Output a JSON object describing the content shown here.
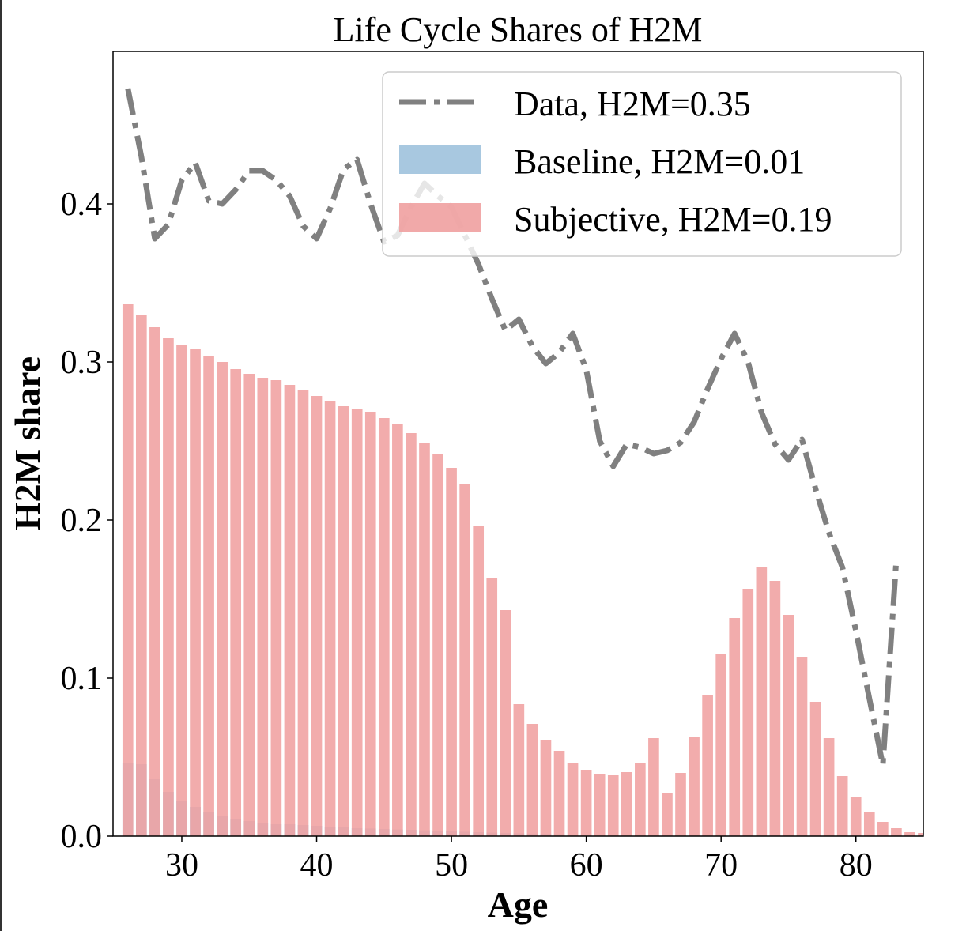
{
  "chart_data": {
    "type": "bar",
    "title": "Life Cycle Shares of H2M",
    "xlabel": "Age",
    "ylabel": "H2M share",
    "xlim": [
      24.9,
      85.0
    ],
    "ylim": [
      0.0,
      0.4965
    ],
    "xticks": [
      30,
      40,
      50,
      60,
      70,
      80
    ],
    "xtick_labels": [
      "30",
      "40",
      "50",
      "60",
      "70",
      "80"
    ],
    "yticks": [
      0.0,
      0.1,
      0.2,
      0.3,
      0.4
    ],
    "ytick_labels": [
      "0.0",
      "0.1",
      "0.2",
      "0.3",
      "0.4"
    ],
    "grid": false,
    "legend_position": "top-right",
    "x": [
      26,
      27,
      28,
      29,
      30,
      31,
      32,
      33,
      34,
      35,
      36,
      37,
      38,
      39,
      40,
      41,
      42,
      43,
      44,
      45,
      46,
      47,
      48,
      49,
      50,
      51,
      52,
      53,
      54,
      55,
      56,
      57,
      58,
      59,
      60,
      61,
      62,
      63,
      64,
      65,
      66,
      67,
      68,
      69,
      70,
      71,
      72,
      73,
      74,
      75,
      76,
      77,
      78,
      79,
      80,
      81,
      82,
      83,
      84,
      85
    ],
    "series": [
      {
        "name": "Data, H2M=0.35",
        "kind": "line",
        "style": "dashdot",
        "color": "#808080",
        "x": [
          26,
          27,
          28,
          29,
          30,
          31,
          32,
          33,
          34,
          35,
          36,
          37,
          38,
          39,
          40,
          41,
          42,
          43,
          44,
          45,
          46,
          47,
          48,
          49,
          50,
          51,
          52,
          53,
          54,
          55,
          56,
          57,
          58,
          59,
          60,
          61,
          62,
          63,
          64,
          65,
          66,
          67,
          68,
          69,
          70,
          71,
          72,
          73,
          74,
          75,
          76,
          77,
          78,
          79,
          80,
          81,
          82,
          83
        ],
        "values": [
          0.473,
          0.43,
          0.378,
          0.387,
          0.415,
          0.426,
          0.402,
          0.4,
          0.409,
          0.421,
          0.421,
          0.415,
          0.405,
          0.386,
          0.378,
          0.397,
          0.422,
          0.428,
          0.4,
          0.376,
          0.38,
          0.398,
          0.413,
          0.405,
          0.398,
          0.38,
          0.362,
          0.34,
          0.32,
          0.327,
          0.31,
          0.299,
          0.306,
          0.318,
          0.295,
          0.25,
          0.234,
          0.248,
          0.246,
          0.242,
          0.244,
          0.249,
          0.262,
          0.283,
          0.302,
          0.318,
          0.3,
          0.268,
          0.248,
          0.238,
          0.251,
          0.22,
          0.192,
          0.17,
          0.13,
          0.087,
          0.045,
          0.175
        ]
      },
      {
        "name": "Baseline, H2M=0.01",
        "kind": "bar",
        "color": "#a8c8e0",
        "values": [
          0.046,
          0.0455,
          0.036,
          0.028,
          0.0225,
          0.0185,
          0.015,
          0.013,
          0.011,
          0.0095,
          0.0085,
          0.008,
          0.0075,
          0.007,
          0.0065,
          0.006,
          0.0055,
          0.005,
          0.0048,
          0.0045,
          0.0042,
          0.004,
          0.0037,
          0.0034,
          0.0031,
          0.0028,
          0.0025,
          0.0022,
          0.002,
          0.0018,
          0.0016,
          0.0014,
          0.0012,
          0.001,
          0.0009,
          0.0008,
          0.0007,
          0.0006,
          0.0005,
          0.0005,
          0.0004,
          0.0004,
          0.0004,
          0.0004,
          0.0004,
          0.0004,
          0.0004,
          0.0004,
          0.0004,
          0.0004,
          0.0004,
          0.0004,
          0.0004,
          0.0004,
          0.0004,
          0.0004,
          0.0004,
          0.0004,
          0.0004,
          0.0004
        ]
      },
      {
        "name": "Subjective, H2M=0.19",
        "kind": "bar",
        "color": "#f0a0a0",
        "values": [
          0.3365,
          0.33,
          0.322,
          0.315,
          0.311,
          0.308,
          0.304,
          0.3,
          0.2955,
          0.2925,
          0.29,
          0.2885,
          0.2855,
          0.2825,
          0.2785,
          0.2755,
          0.272,
          0.27,
          0.2685,
          0.2645,
          0.2605,
          0.255,
          0.249,
          0.242,
          0.233,
          0.223,
          0.196,
          0.1635,
          0.143,
          0.0835,
          0.071,
          0.061,
          0.054,
          0.0465,
          0.042,
          0.0395,
          0.0385,
          0.0405,
          0.0465,
          0.062,
          0.0275,
          0.04,
          0.0625,
          0.089,
          0.1155,
          0.138,
          0.1565,
          0.1705,
          0.1615,
          0.14,
          0.1135,
          0.085,
          0.062,
          0.038,
          0.025,
          0.015,
          0.009,
          0.005,
          0.0025,
          0.002
        ]
      }
    ]
  }
}
